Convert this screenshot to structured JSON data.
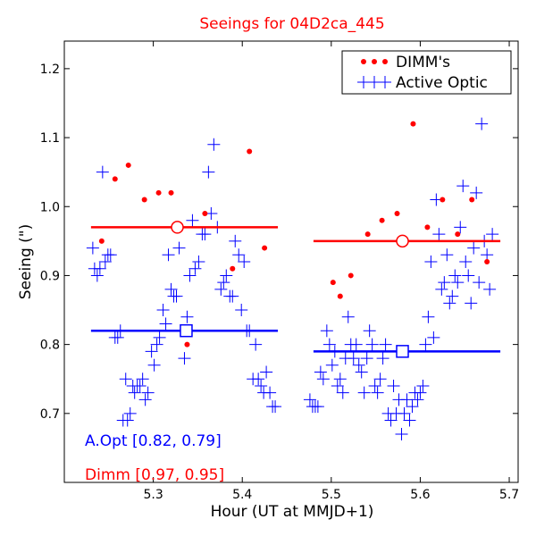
{
  "chart_data": {
    "type": "scatter",
    "title": "Seeings for 04D2ca_445",
    "xlabel": "Hour (UT at MMJD+1)",
    "ylabel": "Seeing (\")",
    "xlim": [
      5.2,
      5.71
    ],
    "ylim": [
      0.6,
      1.24
    ],
    "xticks": [
      5.3,
      5.4,
      5.5,
      5.6,
      5.7
    ],
    "yticks": [
      0.7,
      0.8,
      0.9,
      1.0,
      1.1,
      1.2
    ],
    "xtick_labels": [
      "5.3",
      "5.4",
      "5.5",
      "5.6",
      "5.7"
    ],
    "ytick_labels": [
      "0.7",
      "0.8",
      "0.9",
      "1.0",
      "1.1",
      "1.2"
    ],
    "grid": false,
    "legend_position": "top-right",
    "colors": {
      "dimm": "#ff0000",
      "ao": "#0000ff",
      "axis": "#000000"
    },
    "series": [
      {
        "name": "DIMM's",
        "marker": "dot",
        "color": "#ff0000",
        "points": [
          [
            5.242,
            0.95
          ],
          [
            5.257,
            1.04
          ],
          [
            5.272,
            1.06
          ],
          [
            5.29,
            1.01
          ],
          [
            5.306,
            1.02
          ],
          [
            5.32,
            1.02
          ],
          [
            5.338,
            0.8
          ],
          [
            5.358,
            0.99
          ],
          [
            5.389,
            0.91
          ],
          [
            5.408,
            1.08
          ],
          [
            5.425,
            0.94
          ],
          [
            5.502,
            0.89
          ],
          [
            5.51,
            0.87
          ],
          [
            5.522,
            0.9
          ],
          [
            5.541,
            0.96
          ],
          [
            5.557,
            0.98
          ],
          [
            5.574,
            0.99
          ],
          [
            5.592,
            1.12
          ],
          [
            5.608,
            0.97
          ],
          [
            5.625,
            1.01
          ],
          [
            5.642,
            0.96
          ],
          [
            5.658,
            1.01
          ],
          [
            5.675,
            0.92
          ]
        ]
      },
      {
        "name": "Active Optic",
        "marker": "plus",
        "color": "#0000ff",
        "points": [
          [
            5.232,
            0.94
          ],
          [
            5.234,
            0.91
          ],
          [
            5.237,
            0.9
          ],
          [
            5.24,
            0.91
          ],
          [
            5.243,
            1.05
          ],
          [
            5.246,
            0.92
          ],
          [
            5.249,
            0.93
          ],
          [
            5.252,
            0.93
          ],
          [
            5.257,
            0.81
          ],
          [
            5.26,
            0.81
          ],
          [
            5.263,
            0.82
          ],
          [
            5.266,
            0.69
          ],
          [
            5.269,
            0.75
          ],
          [
            5.271,
            0.69
          ],
          [
            5.274,
            0.7
          ],
          [
            5.277,
            0.74
          ],
          [
            5.279,
            0.73
          ],
          [
            5.282,
            0.74
          ],
          [
            5.285,
            0.74
          ],
          [
            5.288,
            0.75
          ],
          [
            5.291,
            0.72
          ],
          [
            5.294,
            0.73
          ],
          [
            5.298,
            0.79
          ],
          [
            5.301,
            0.77
          ],
          [
            5.304,
            0.8
          ],
          [
            5.307,
            0.81
          ],
          [
            5.311,
            0.85
          ],
          [
            5.314,
            0.83
          ],
          [
            5.317,
            0.93
          ],
          [
            5.32,
            0.88
          ],
          [
            5.323,
            0.87
          ],
          [
            5.326,
            0.87
          ],
          [
            5.329,
            0.94
          ],
          [
            5.335,
            0.78
          ],
          [
            5.338,
            0.84
          ],
          [
            5.341,
            0.9
          ],
          [
            5.344,
            0.98
          ],
          [
            5.347,
            0.91
          ],
          [
            5.351,
            0.92
          ],
          [
            5.355,
            0.96
          ],
          [
            5.358,
            0.96
          ],
          [
            5.362,
            1.05
          ],
          [
            5.365,
            0.99
          ],
          [
            5.368,
            1.09
          ],
          [
            5.372,
            0.97
          ],
          [
            5.376,
            0.88
          ],
          [
            5.379,
            0.89
          ],
          [
            5.382,
            0.9
          ],
          [
            5.386,
            0.87
          ],
          [
            5.389,
            0.87
          ],
          [
            5.392,
            0.95
          ],
          [
            5.396,
            0.93
          ],
          [
            5.399,
            0.85
          ],
          [
            5.402,
            0.92
          ],
          [
            5.405,
            0.82
          ],
          [
            5.408,
            0.82
          ],
          [
            5.412,
            0.75
          ],
          [
            5.415,
            0.8
          ],
          [
            5.418,
            0.75
          ],
          [
            5.421,
            0.74
          ],
          [
            5.424,
            0.73
          ],
          [
            5.427,
            0.76
          ],
          [
            5.431,
            0.73
          ],
          [
            5.434,
            0.71
          ],
          [
            5.437,
            0.71
          ],
          [
            5.476,
            0.72
          ],
          [
            5.479,
            0.71
          ],
          [
            5.482,
            0.71
          ],
          [
            5.485,
            0.71
          ],
          [
            5.488,
            0.76
          ],
          [
            5.491,
            0.75
          ],
          [
            5.495,
            0.82
          ],
          [
            5.498,
            0.8
          ],
          [
            5.501,
            0.77
          ],
          [
            5.504,
            0.79
          ],
          [
            5.507,
            0.74
          ],
          [
            5.51,
            0.75
          ],
          [
            5.513,
            0.73
          ],
          [
            5.516,
            0.78
          ],
          [
            5.519,
            0.84
          ],
          [
            5.522,
            0.8
          ],
          [
            5.525,
            0.78
          ],
          [
            5.528,
            0.8
          ],
          [
            5.531,
            0.77
          ],
          [
            5.534,
            0.76
          ],
          [
            5.537,
            0.73
          ],
          [
            5.54,
            0.78
          ],
          [
            5.543,
            0.82
          ],
          [
            5.546,
            0.8
          ],
          [
            5.549,
            0.74
          ],
          [
            5.552,
            0.73
          ],
          [
            5.555,
            0.75
          ],
          [
            5.558,
            0.78
          ],
          [
            5.561,
            0.8
          ],
          [
            5.564,
            0.7
          ],
          [
            5.567,
            0.69
          ],
          [
            5.57,
            0.74
          ],
          [
            5.573,
            0.7
          ],
          [
            5.576,
            0.72
          ],
          [
            5.579,
            0.67
          ],
          [
            5.582,
            0.7
          ],
          [
            5.585,
            0.72
          ],
          [
            5.588,
            0.69
          ],
          [
            5.591,
            0.71
          ],
          [
            5.594,
            0.73
          ],
          [
            5.597,
            0.72
          ],
          [
            5.6,
            0.73
          ],
          [
            5.603,
            0.74
          ],
          [
            5.606,
            0.8
          ],
          [
            5.609,
            0.84
          ],
          [
            5.612,
            0.92
          ],
          [
            5.615,
            0.81
          ],
          [
            5.618,
            1.01
          ],
          [
            5.621,
            0.96
          ],
          [
            5.624,
            0.88
          ],
          [
            5.627,
            0.89
          ],
          [
            5.63,
            0.93
          ],
          [
            5.633,
            0.86
          ],
          [
            5.636,
            0.87
          ],
          [
            5.639,
            0.9
          ],
          [
            5.642,
            0.89
          ],
          [
            5.645,
            0.97
          ],
          [
            5.648,
            1.03
          ],
          [
            5.651,
            0.92
          ],
          [
            5.654,
            0.9
          ],
          [
            5.657,
            0.86
          ],
          [
            5.66,
            0.94
          ],
          [
            5.663,
            1.02
          ],
          [
            5.666,
            0.89
          ],
          [
            5.669,
            1.12
          ],
          [
            5.672,
            0.95
          ],
          [
            5.675,
            0.93
          ],
          [
            5.678,
            0.88
          ],
          [
            5.681,
            0.96
          ]
        ]
      }
    ],
    "summary_lines": [
      {
        "series": "DIMM's",
        "color": "#ff0000",
        "x_start": 5.23,
        "x_end": 5.44,
        "value": 0.97,
        "marker_x": 5.327,
        "marker": "circle"
      },
      {
        "series": "DIMM's",
        "color": "#ff0000",
        "x_start": 5.48,
        "x_end": 5.69,
        "value": 0.95,
        "marker_x": 5.58,
        "marker": "circle"
      },
      {
        "series": "Active Optic",
        "color": "#0000ff",
        "x_start": 5.23,
        "x_end": 5.44,
        "value": 0.82,
        "marker_x": 5.337,
        "marker": "square"
      },
      {
        "series": "Active Optic",
        "color": "#0000ff",
        "x_start": 5.48,
        "x_end": 5.69,
        "value": 0.79,
        "marker_x": 5.58,
        "marker": "square"
      }
    ],
    "annotations": [
      {
        "text": "A.Opt [0.82, 0.79]",
        "color": "#0000ff",
        "position": "bottom-left"
      },
      {
        "text": "Dimm [0.97, 0.95]",
        "color": "#ff0000",
        "position": "bottom-left"
      }
    ]
  }
}
